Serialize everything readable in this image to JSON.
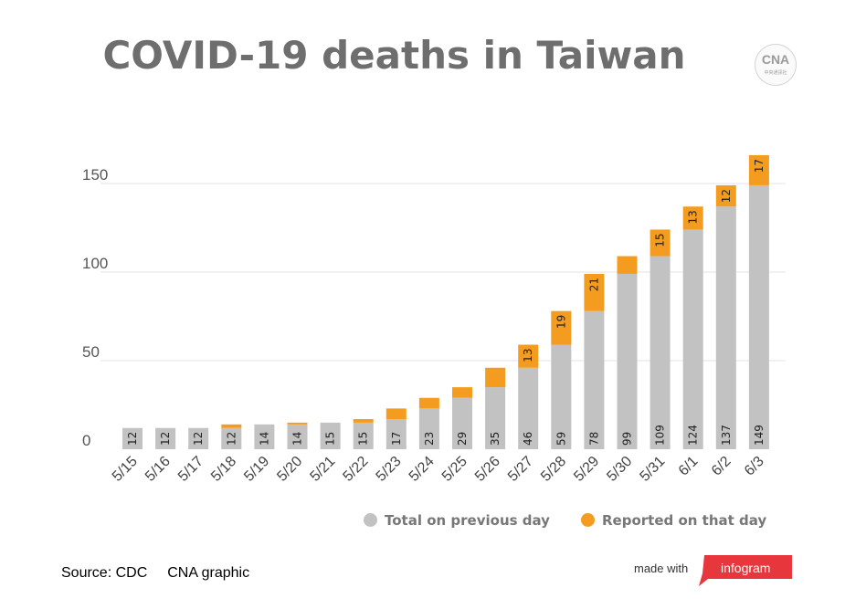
{
  "title": "COVID-19 deaths in Taiwan",
  "logo": {
    "mark": "CNA",
    "sub": "中央通訊社"
  },
  "colors": {
    "previous": "#c2c2c2",
    "reported": "#f39c20",
    "grid": "#e3e3e3",
    "title": "#6e6e6e"
  },
  "chart_data": {
    "type": "bar",
    "stacked": true,
    "categories": [
      "5/15",
      "5/16",
      "5/17",
      "5/18",
      "5/19",
      "5/20",
      "5/21",
      "5/22",
      "5/23",
      "5/24",
      "5/25",
      "5/26",
      "5/27",
      "5/28",
      "5/29",
      "5/30",
      "5/31",
      "6/1",
      "6/2",
      "6/3"
    ],
    "series": [
      {
        "name": "Total on previous day",
        "values": [
          12,
          12,
          12,
          12,
          14,
          14,
          15,
          15,
          17,
          23,
          29,
          35,
          46,
          59,
          78,
          99,
          109,
          124,
          137,
          149
        ]
      },
      {
        "name": "Reported on that day",
        "values": [
          0,
          0,
          0,
          2,
          0,
          1,
          0,
          2,
          6,
          6,
          6,
          11,
          13,
          19,
          21,
          10,
          15,
          13,
          12,
          17
        ]
      }
    ],
    "bar_labels": {
      "previous": [
        "12",
        "12",
        "12",
        "12",
        "14",
        "14",
        "15",
        "15",
        "17",
        "23",
        "29",
        "35",
        "46",
        "59",
        "78",
        "99",
        "109",
        "124",
        "137",
        "149"
      ],
      "reported": [
        "",
        "",
        "",
        "",
        "",
        "",
        "",
        "",
        "",
        "",
        "",
        "",
        "13",
        "19",
        "21",
        "",
        "15",
        "13",
        "12",
        "17"
      ]
    },
    "yticks": [
      0,
      50,
      100,
      150
    ],
    "ylim": [
      0,
      170
    ],
    "grid": true,
    "legend_position": "bottom-right"
  },
  "legend": {
    "previous": "Total on previous day",
    "reported": "Reported on that day"
  },
  "footer": {
    "source": "Source: CDC",
    "credit": "CNA graphic",
    "made_with": "made with",
    "infogram": "infogram"
  }
}
